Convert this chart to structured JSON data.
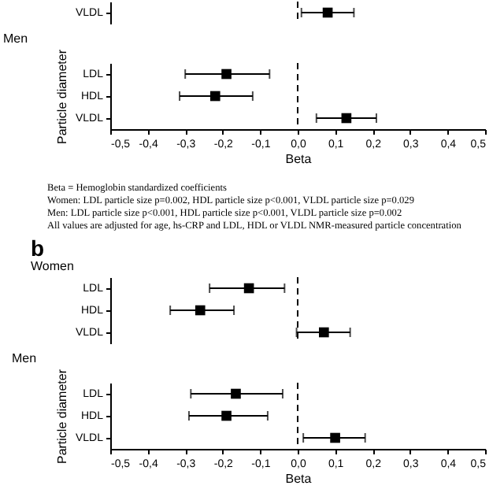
{
  "chart_data": [
    {
      "type": "scatter",
      "orientation": "horizontal",
      "categories": [
        "VLDL"
      ],
      "series": [
        {
          "color": "#000000",
          "values": [
            0.08
          ],
          "errors": [
            [
              0.01,
              0.15
            ]
          ]
        }
      ],
      "xlim": [
        -0.5,
        0.5
      ],
      "tick_labels": "y",
      "marker": "square",
      "grid": false,
      "ref_lines": [
        {
          "axis": "x",
          "value": 0,
          "line_style": "dashed",
          "color": "#000000"
        }
      ]
    },
    {
      "type": "scatter",
      "orientation": "horizontal",
      "title": "Men",
      "ylabel": "Particle diameter",
      "xlabel": "Beta",
      "categories": [
        "LDL",
        "HDL",
        "VLDL"
      ],
      "series": [
        {
          "color": "#000000",
          "values": [
            -0.19,
            -0.22,
            0.13
          ],
          "errors": [
            [
              -0.3,
              -0.075
            ],
            [
              -0.315,
              -0.12
            ],
            [
              0.05,
              0.21
            ]
          ]
        }
      ],
      "xlim": [
        -0.5,
        0.5
      ],
      "xticks": [
        {
          "value": -0.5,
          "label": "-0,5"
        },
        {
          "value": -0.4,
          "label": "-0,4"
        },
        {
          "value": -0.3,
          "label": "-0,3"
        },
        {
          "value": -0.2,
          "label": "-0,2"
        },
        {
          "value": -0.1,
          "label": "-0,1"
        },
        {
          "value": 0,
          "label": "0,0"
        },
        {
          "value": 0.1,
          "label": "0,1"
        },
        {
          "value": 0.2,
          "label": "0,2"
        },
        {
          "value": 0.3,
          "label": "0,3"
        },
        {
          "value": 0.4,
          "label": "0,4"
        },
        {
          "value": 0.5,
          "label": "0,5"
        }
      ],
      "marker": "square",
      "grid": false,
      "ref_lines": [
        {
          "axis": "x",
          "value": 0,
          "line_style": "dashed",
          "color": "#000000"
        }
      ],
      "annotations": [
        "Beta = Hemoglobin standardized coefficients",
        "Women: LDL particle size p=0.002, HDL particle size p<0.001, VLDL particle size p=0.029",
        "Men: LDL particle size p<0.001, HDL particle size p<0.001, VLDL particle size p=0.002",
        "All values are adjusted for age, hs-CRP and LDL, HDL or VLDL NMR-measured particle concentration"
      ]
    },
    {
      "type": "scatter",
      "orientation": "horizontal",
      "title": "b",
      "subtitle": "Women",
      "categories": [
        "LDL",
        "HDL",
        "VLDL"
      ],
      "series": [
        {
          "color": "#000000",
          "values": [
            -0.13,
            -0.26,
            0.07
          ],
          "errors": [
            [
              -0.235,
              -0.035
            ],
            [
              -0.34,
              -0.17
            ],
            [
              -0.003,
              0.14
            ]
          ]
        }
      ],
      "xlim": [
        -0.5,
        0.5
      ],
      "tick_labels": "y",
      "marker": "square",
      "grid": false,
      "ref_lines": [
        {
          "axis": "x",
          "value": 0,
          "line_style": "dashed",
          "color": "#000000"
        }
      ]
    },
    {
      "type": "scatter",
      "orientation": "horizontal",
      "title": "Men",
      "ylabel": "Particle diameter",
      "xlabel": "Beta",
      "categories": [
        "LDL",
        "HDL",
        "VLDL"
      ],
      "series": [
        {
          "color": "#000000",
          "values": [
            -0.165,
            -0.19,
            0.1
          ],
          "errors": [
            [
              -0.285,
              -0.04
            ],
            [
              -0.29,
              -0.08
            ],
            [
              0.015,
              0.18
            ]
          ]
        }
      ],
      "xlim": [
        -0.5,
        0.5
      ],
      "xticks": [
        {
          "value": -0.5,
          "label": "-0,5"
        },
        {
          "value": -0.4,
          "label": "-0,4"
        },
        {
          "value": -0.3,
          "label": "-0,3"
        },
        {
          "value": -0.2,
          "label": "-0,2"
        },
        {
          "value": -0.1,
          "label": "-0,1"
        },
        {
          "value": 0,
          "label": "0,0"
        },
        {
          "value": 0.1,
          "label": "0,1"
        },
        {
          "value": 0.2,
          "label": "0,2"
        },
        {
          "value": 0.3,
          "label": "0,3"
        },
        {
          "value": 0.4,
          "label": "0,4"
        },
        {
          "value": 0.5,
          "label": "0,5"
        }
      ],
      "marker": "square",
      "grid": false,
      "ref_lines": [
        {
          "axis": "x",
          "value": 0,
          "line_style": "dashed",
          "color": "#000000"
        }
      ]
    }
  ]
}
